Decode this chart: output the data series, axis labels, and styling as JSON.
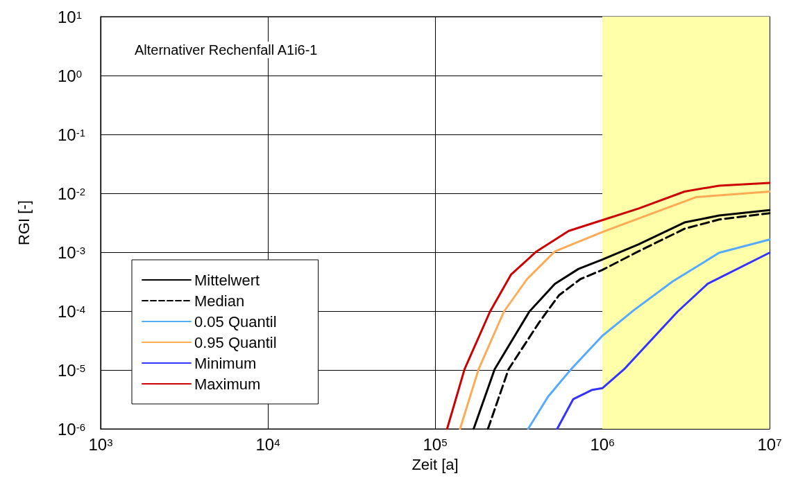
{
  "chart_data": {
    "type": "line",
    "xlabel": "Zeit [a]",
    "ylabel": "RGI [-]",
    "annotations": [
      "Alternativer Rechenfall A1i6-1"
    ],
    "log": "xy",
    "grid": true,
    "legend": "bottom left",
    "marker": "none",
    "line_style": "solid",
    "xlim": [
      1000,
      10000000
    ],
    "ylim": [
      1e-06,
      10
    ],
    "xticks": [
      {
        "value": 1000,
        "label": "10$^{3}$"
      },
      {
        "value": 10000,
        "label": "10$^{4}$"
      },
      {
        "value": 100000,
        "label": "10$^{5}$"
      },
      {
        "value": 1000000,
        "label": "10$^{6}$"
      },
      {
        "value": 10000000,
        "label": "10$^{7}$"
      }
    ],
    "yticks": [
      {
        "value": 1e-06,
        "label": "10$^{-6}$"
      },
      {
        "value": 1e-05,
        "label": "10$^{-5}$"
      },
      {
        "value": 0.0001,
        "label": "10$^{-4}$"
      },
      {
        "value": 0.001,
        "label": "10$^{-3}$"
      },
      {
        "value": 0.01,
        "label": "10$^{-2}$"
      },
      {
        "value": 0.1,
        "label": "10$^{-1}$"
      },
      {
        "value": 1,
        "label": "10$^{0}$"
      },
      {
        "value": 10,
        "label": "10$^{1}$"
      }
    ],
    "bands": [
      {
        "axis": "x",
        "from": 1000000,
        "to": 10000000,
        "color": "#ffffaa"
      }
    ],
    "series": [
      {
        "name": "Mittelwert",
        "color": "#000000",
        "x": [
          170000,
          227000,
          366000,
          520000,
          720000,
          1000000,
          1640000,
          3100000,
          5000000,
          10000000
        ],
        "values": [
          1e-06,
          1.03e-05,
          9.8e-05,
          0.00029,
          0.00052,
          0.00075,
          0.00135,
          0.0032,
          0.0042,
          0.0052
        ]
      },
      {
        "name": "Median",
        "color": "#000000",
        "line_style": "dashed",
        "x": [
          207000,
          275000,
          417000,
          550000,
          740000,
          1000000,
          1640000,
          3100000,
          5000000,
          10000000
        ],
        "values": [
          1e-06,
          1.03e-05,
          6.3e-05,
          0.000185,
          0.00035,
          0.0005,
          0.00103,
          0.0025,
          0.0036,
          0.0046
        ]
      },
      {
        "name": "0.05 Quantil",
        "color": "#55aaff",
        "x": [
          360000,
          473000,
          650000,
          1000000,
          1540000,
          2640000,
          5000000,
          10000000
        ],
        "values": [
          1e-06,
          3.5e-06,
          1.03e-05,
          3.8e-05,
          0.000103,
          0.00032,
          0.00098,
          0.00164
        ]
      },
      {
        "name": "0.95 Quantil",
        "color": "#ffaa55",
        "x": [
          141000,
          182000,
          258000,
          355000,
          520000,
          1000000,
          1920000,
          3630000,
          10000000
        ],
        "values": [
          1e-06,
          1.03e-05,
          9.8e-05,
          0.00035,
          0.00103,
          0.0022,
          0.0044,
          0.0086,
          0.0107
        ]
      },
      {
        "name": "Minimum",
        "color": "#3333ff",
        "x": [
          537000,
          670000,
          870000,
          1000000,
          1350000,
          2820000,
          4260000,
          10000000
        ],
        "values": [
          1e-06,
          3.2e-06,
          4.6e-06,
          4.9e-06,
          1.03e-05,
          9.8e-05,
          0.00029,
          0.00098
        ]
      },
      {
        "name": "Maximum",
        "color": "#cc0000",
        "x": [
          118000,
          150000,
          213000,
          285000,
          404000,
          630000,
          1000000,
          1640000,
          3100000,
          5000000,
          10000000
        ],
        "values": [
          1e-06,
          1.03e-05,
          9.8e-05,
          0.00042,
          0.00103,
          0.0023,
          0.0035,
          0.0055,
          0.0107,
          0.0135,
          0.015
        ]
      }
    ]
  }
}
